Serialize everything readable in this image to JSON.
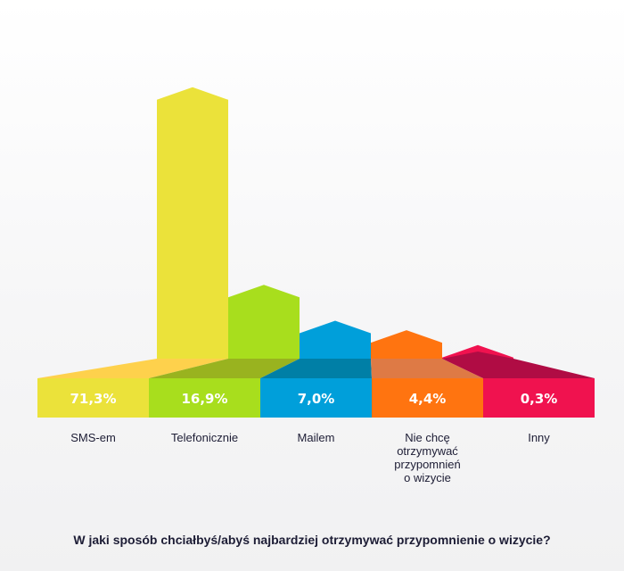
{
  "chart_data": {
    "type": "bar",
    "title": "W jaki sposób chciałbyś/abyś najbardziej otrzymywać przypomnienie o wizycie?",
    "categories": [
      "SMS-em",
      "Telefonicznie",
      "Mailem",
      "Nie chcę otrzymywać przypomnień o wizycie",
      "Inny"
    ],
    "category_lines": [
      [
        "SMS-em"
      ],
      [
        "Telefonicznie"
      ],
      [
        "Mailem"
      ],
      [
        "Nie chcę",
        "otrzymywać",
        "przypomnień",
        "o wizycie"
      ],
      [
        "Inny"
      ]
    ],
    "values": [
      71.3,
      16.9,
      7.0,
      4.4,
      0.3
    ],
    "value_labels": [
      "71,3%",
      "16,9%",
      "7,0%",
      "4,4%",
      "0,3%"
    ],
    "unit": "%",
    "ylim": [
      0,
      100
    ],
    "grid": false,
    "legend": "none",
    "colors": [
      "#ebe23a",
      "#a8de1d",
      "#009fda",
      "#ff7410",
      "#f0124f"
    ],
    "side_colors": [
      "#fed14c",
      "#99b31f",
      "#007fa6",
      "#de7a45",
      "#b00c44"
    ]
  }
}
